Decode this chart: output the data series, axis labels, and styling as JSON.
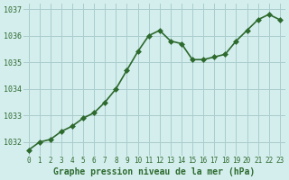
{
  "x": [
    0,
    1,
    2,
    3,
    4,
    5,
    6,
    7,
    8,
    9,
    10,
    11,
    12,
    13,
    14,
    15,
    16,
    17,
    18,
    19,
    20,
    21,
    22,
    23
  ],
  "y": [
    1031.7,
    1032.0,
    1032.1,
    1032.4,
    1032.6,
    1032.9,
    1033.1,
    1033.5,
    1034.0,
    1034.7,
    1035.4,
    1036.0,
    1036.2,
    1035.8,
    1035.7,
    1035.1,
    1035.1,
    1035.2,
    1035.3,
    1035.8,
    1036.2,
    1036.6,
    1036.8,
    1036.6
  ],
  "line_color": "#2d6a2d",
  "marker_color": "#2d6a2d",
  "bg_color": "#d4eeee",
  "grid_color": "#aacccc",
  "xlabel": "Graphe pression niveau de la mer (hPa)",
  "xlabel_color": "#2d6a2d",
  "tick_color": "#2d6a2d",
  "ylim": [
    1031.5,
    1037.2
  ],
  "yticks": [
    1032,
    1033,
    1034,
    1035,
    1036,
    1037
  ],
  "xticks": [
    0,
    1,
    2,
    3,
    4,
    5,
    6,
    7,
    8,
    9,
    10,
    11,
    12,
    13,
    14,
    15,
    16,
    17,
    18,
    19,
    20,
    21,
    22,
    23
  ],
  "title_color": "#2d6a2d",
  "marker_size": 3,
  "line_width": 1.2
}
